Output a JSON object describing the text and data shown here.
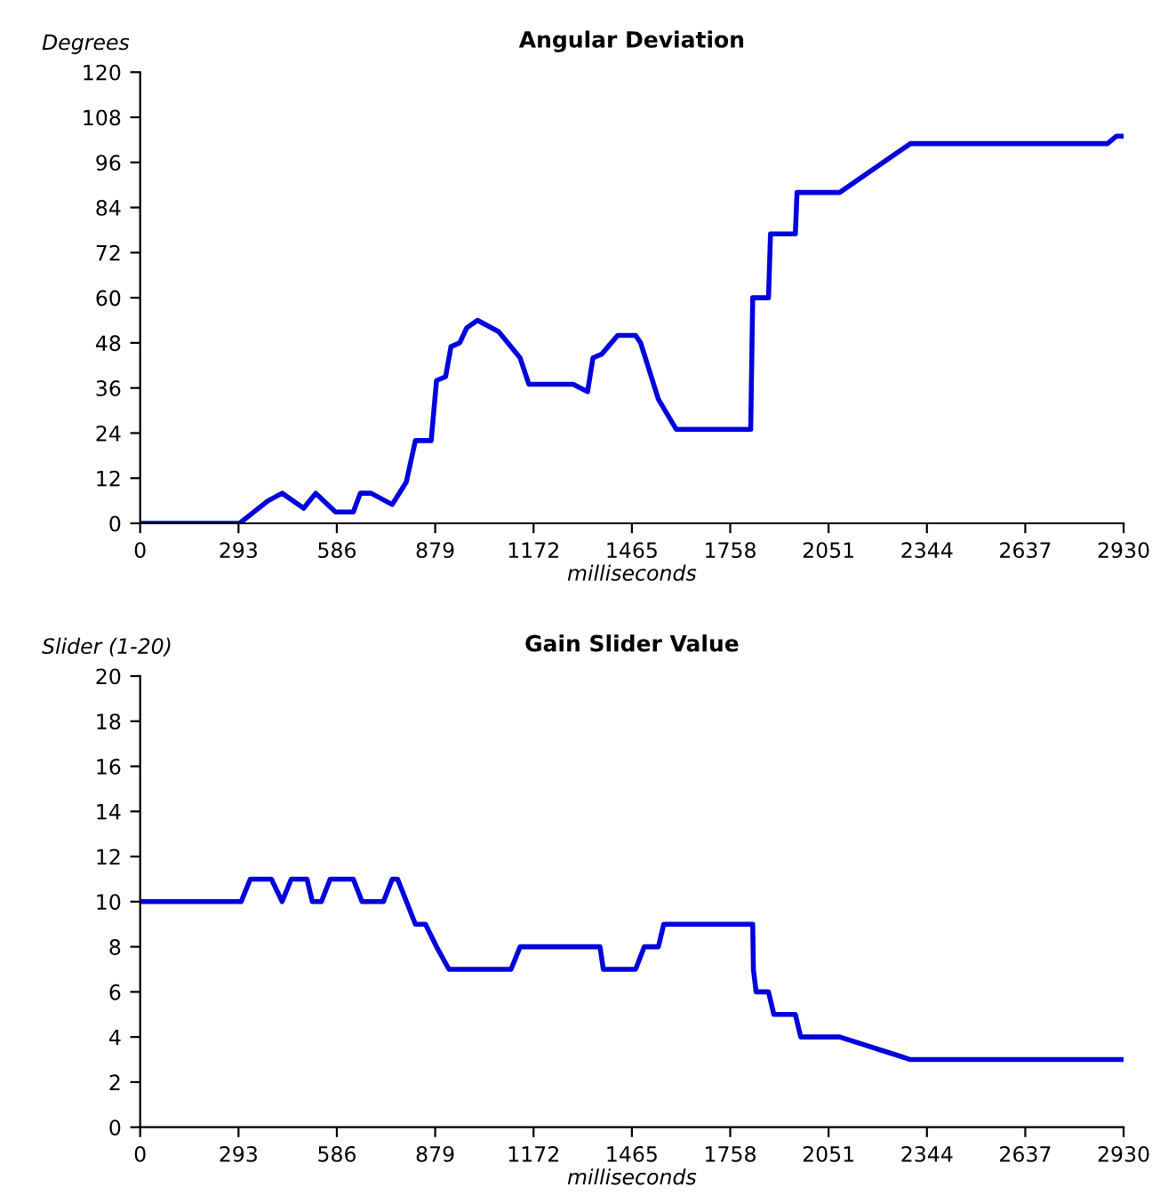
{
  "chart_data": [
    {
      "type": "line",
      "title": "Angular Deviation",
      "xlabel": "milliseconds",
      "ylabel": "Degrees",
      "xlim": [
        0,
        2930
      ],
      "xticks": [
        0,
        293,
        586,
        879,
        1172,
        1465,
        1758,
        2051,
        2344,
        2637,
        2930
      ],
      "ylim": [
        0,
        120
      ],
      "yticks": [
        0,
        12,
        24,
        36,
        48,
        60,
        72,
        84,
        96,
        108,
        120
      ],
      "grid": false,
      "legend": false,
      "marker": "none",
      "line_style": "solid",
      "series": [
        {
          "color": "#0000dd",
          "x": [
            0,
            296,
            381,
            423,
            487,
            523,
            582,
            635,
            656,
            688,
            751,
            793,
            820,
            867,
            883,
            910,
            926,
            952,
            973,
            1005,
            1068,
            1132,
            1158,
            1290,
            1333,
            1349,
            1375,
            1423,
            1476,
            1491,
            1544,
            1597,
            1819,
            1825,
            1872,
            1878,
            1952,
            1957,
            2084,
            2295,
            2882,
            2909,
            2930
          ],
          "values": [
            0,
            0,
            6,
            8,
            4,
            8,
            3,
            3,
            8,
            8,
            5,
            11,
            22,
            22,
            38,
            39,
            47,
            48,
            52,
            54,
            51,
            44,
            37,
            37,
            35,
            44,
            45,
            50,
            50,
            48,
            33,
            25,
            25,
            60,
            60,
            77,
            77,
            88,
            88,
            101,
            101,
            103,
            103
          ]
        }
      ]
    },
    {
      "type": "line",
      "title": "Gain Slider Value",
      "xlabel": "milliseconds",
      "ylabel": "Slider (1-20)",
      "xlim": [
        0,
        2930
      ],
      "xticks": [
        0,
        293,
        586,
        879,
        1172,
        1465,
        1758,
        2051,
        2344,
        2637,
        2930
      ],
      "ylim": [
        0,
        20
      ],
      "yticks": [
        0,
        2,
        4,
        6,
        8,
        10,
        12,
        14,
        16,
        18,
        20
      ],
      "grid": false,
      "legend": false,
      "marker": "none",
      "line_style": "solid",
      "series": [
        {
          "color": "#0000dd",
          "x": [
            0,
            301,
            328,
            391,
            423,
            450,
            497,
            513,
            540,
            566,
            635,
            661,
            725,
            751,
            767,
            820,
            850,
            883,
            920,
            1105,
            1132,
            1370,
            1380,
            1476,
            1502,
            1544,
            1560,
            1825,
            1827,
            1835,
            1872,
            1888,
            1952,
            1968,
            2084,
            2295,
            2930
          ],
          "values": [
            10,
            10,
            11,
            11,
            10,
            11,
            11,
            10,
            10,
            11,
            11,
            10,
            10,
            11,
            11,
            9,
            9,
            8,
            7,
            7,
            8,
            8,
            7,
            7,
            8,
            8,
            9,
            9,
            7,
            6,
            6,
            5,
            5,
            4,
            4,
            3,
            3
          ]
        }
      ]
    }
  ]
}
